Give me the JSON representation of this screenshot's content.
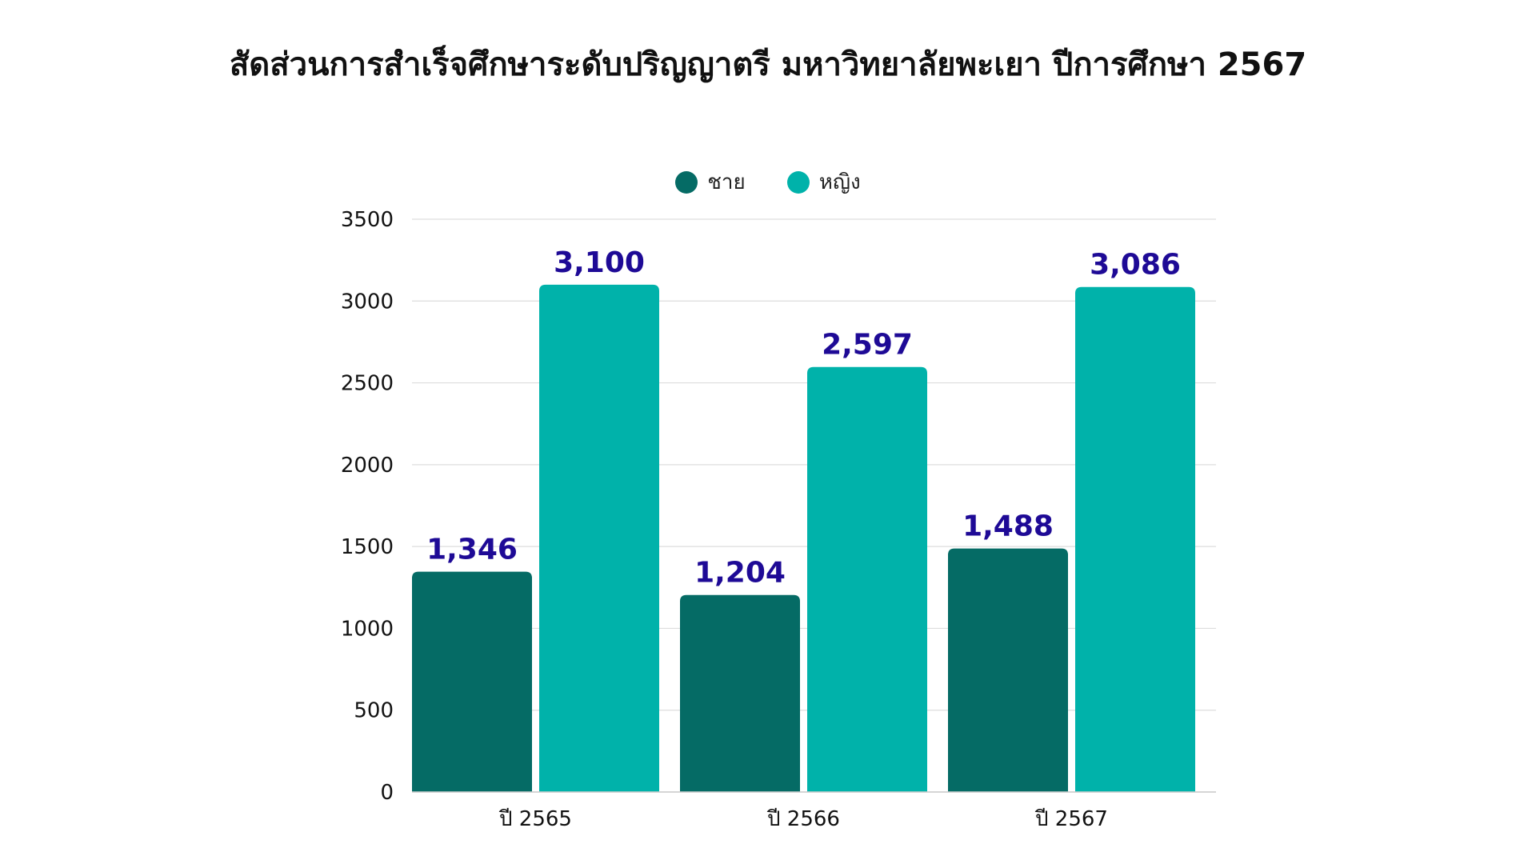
{
  "colors": {
    "male": "#056b65",
    "female": "#00b2aa",
    "value_label": "#1e0a96",
    "grid": "#dddddd",
    "axis_text": "#111111"
  },
  "chart_data": {
    "type": "bar",
    "title": "สัดส่วนการสำเร็จศึกษาระดับปริญญาตรี มหาวิทยาลัยพะเยา ปีการศึกษา 2567",
    "categories": [
      "ปี 2565",
      "ปี 2566",
      "ปี 2567"
    ],
    "series": [
      {
        "name": "ชาย",
        "values": [
          1346,
          1204,
          1488
        ],
        "labels": [
          "1,346",
          "1,204",
          "1,488"
        ]
      },
      {
        "name": "หญิง",
        "values": [
          3100,
          2597,
          3086
        ],
        "labels": [
          "3,100",
          "2,597",
          "3,086"
        ]
      }
    ],
    "y_ticks": [
      0,
      500,
      1000,
      1500,
      2000,
      2500,
      3000,
      3500
    ],
    "ylim": [
      0,
      3500
    ],
    "xlabel": "",
    "ylabel": "",
    "grid": true,
    "legend_position": "top-center"
  }
}
